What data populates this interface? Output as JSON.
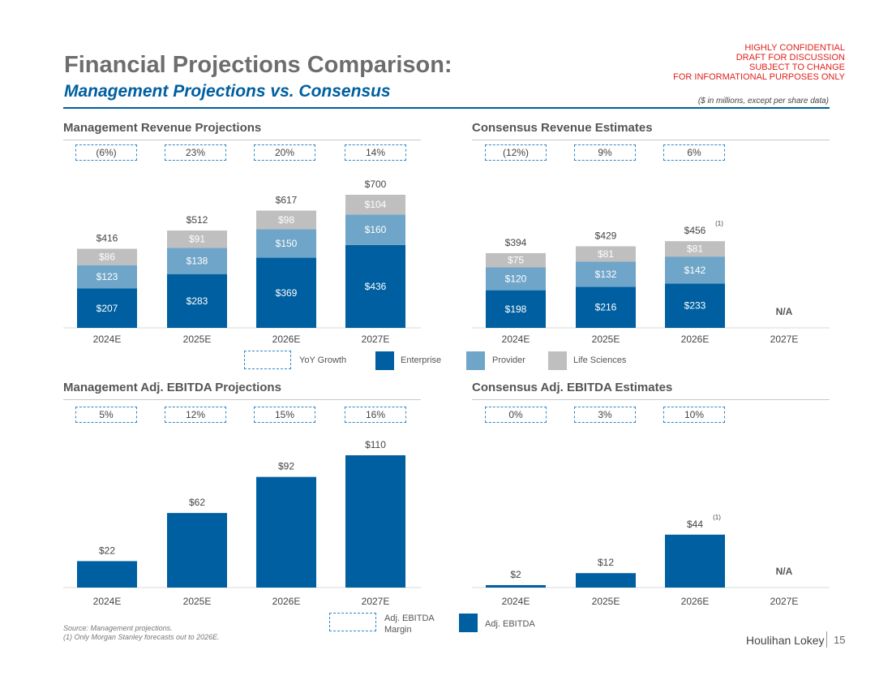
{
  "header": {
    "title": "Financial Projections Comparison:",
    "subtitle": "Management Projections vs. Consensus",
    "confidential": [
      "HIGHLY CONFIDENTIAL",
      "DRAFT FOR DISCUSSION",
      "SUBJECT TO CHANGE",
      "FOR INFORMATIONAL PURPOSES ONLY"
    ],
    "units": "($ in millions, except per share data)"
  },
  "colors": {
    "enterprise": "#005fa0",
    "provider": "#6fa5c8",
    "life_sciences": "#bfbfbf",
    "growth_border": "#2f87c8",
    "confidential": "#e0201c"
  },
  "legends": {
    "revenue": {
      "growth": "YoY Growth",
      "enterprise": "Enterprise",
      "provider": "Provider",
      "life_sciences": "Life Sciences"
    },
    "ebitda": {
      "margin": "Adj. EBITDA Margin",
      "ebitda": "Adj. EBITDA"
    }
  },
  "footer": {
    "source": "Source: Management projections.",
    "note": "(1) Only Morgan Stanley forecasts out to 2026E.",
    "logo": "Houlihan Lokey",
    "page": "15"
  },
  "chart_data": [
    {
      "id": "mgmt_rev",
      "type": "bar",
      "stacked": true,
      "title": "Management Revenue Projections",
      "categories": [
        "2024E",
        "2025E",
        "2026E",
        "2027E"
      ],
      "growth": [
        "(6%)",
        "23%",
        "20%",
        "14%"
      ],
      "series": [
        {
          "name": "Enterprise",
          "values": [
            207,
            283,
            369,
            436
          ],
          "labels": [
            "$207",
            "$283",
            "$369",
            "$436"
          ]
        },
        {
          "name": "Provider",
          "values": [
            123,
            138,
            150,
            160
          ],
          "labels": [
            "$123",
            "$138",
            "$150",
            "$160"
          ]
        },
        {
          "name": "Life Sciences",
          "values": [
            86,
            91,
            98,
            104
          ],
          "labels": [
            "$86",
            "$91",
            "$98",
            "$104"
          ]
        }
      ],
      "totals": [
        "$416",
        "$512",
        "$617",
        "$700"
      ],
      "ylim": [
        0,
        700
      ]
    },
    {
      "id": "cons_rev",
      "type": "bar",
      "stacked": true,
      "title": "Consensus Revenue Estimates",
      "categories": [
        "2024E",
        "2025E",
        "2026E",
        "2027E"
      ],
      "growth": [
        "(12%)",
        "9%",
        "6%"
      ],
      "series": [
        {
          "name": "Enterprise",
          "values": [
            198,
            216,
            233,
            null
          ],
          "labels": [
            "$198",
            "$216",
            "$233",
            ""
          ]
        },
        {
          "name": "Provider",
          "values": [
            120,
            132,
            142,
            null
          ],
          "labels": [
            "$120",
            "$132",
            "$142",
            ""
          ]
        },
        {
          "name": "Life Sciences",
          "values": [
            75,
            81,
            81,
            null
          ],
          "labels": [
            "$75",
            "$81",
            "$81",
            ""
          ]
        }
      ],
      "totals": [
        "$394",
        "$429",
        "$456",
        ""
      ],
      "footnote_marks": [
        "",
        "",
        "(1)",
        ""
      ],
      "na_labels": [
        "",
        "",
        "",
        "N/A"
      ],
      "ylim": [
        0,
        700
      ]
    },
    {
      "id": "mgmt_ebitda",
      "type": "bar",
      "title": "Management Adj. EBITDA Projections",
      "categories": [
        "2024E",
        "2025E",
        "2026E",
        "2027E"
      ],
      "growth": [
        "5%",
        "12%",
        "15%",
        "16%"
      ],
      "values": [
        22,
        62,
        92,
        110
      ],
      "labels": [
        "$22",
        "$62",
        "$92",
        "$110"
      ],
      "ylim": [
        0,
        110
      ]
    },
    {
      "id": "cons_ebitda",
      "type": "bar",
      "title": "Consensus Adj. EBITDA Estimates",
      "categories": [
        "2024E",
        "2025E",
        "2026E",
        "2027E"
      ],
      "growth": [
        "0%",
        "3%",
        "10%"
      ],
      "values": [
        2,
        12,
        44,
        null
      ],
      "labels": [
        "$2",
        "$12",
        "$44",
        ""
      ],
      "footnote_marks": [
        "",
        "",
        "(1)",
        ""
      ],
      "na_labels": [
        "",
        "",
        "",
        "N/A"
      ],
      "ylim": [
        0,
        110
      ]
    }
  ]
}
